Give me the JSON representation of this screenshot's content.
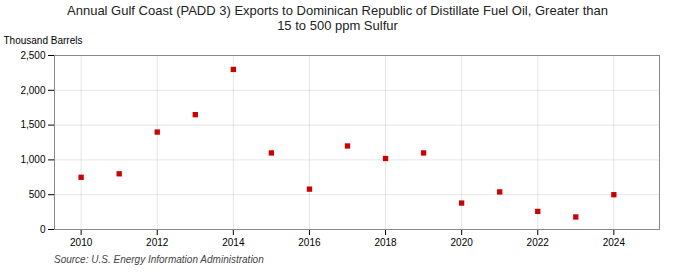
{
  "chart_data": {
    "type": "scatter",
    "title": "Annual Gulf Coast (PADD 3) Exports to Dominican Republic of Distillate Fuel Oil, Greater than\n15 to 500 ppm Sulfur",
    "ylabel": "Thousand Barrels",
    "source": "Source: U.S. Energy Information Administration",
    "x": [
      2010,
      2011,
      2012,
      2013,
      2014,
      2015,
      2016,
      2017,
      2018,
      2019,
      2020,
      2021,
      2022,
      2023,
      2024
    ],
    "values": [
      750,
      800,
      1400,
      1650,
      2300,
      1100,
      580,
      1200,
      1020,
      1100,
      380,
      540,
      260,
      180,
      500
    ],
    "color": "#cc0000",
    "marker": "square",
    "xlim": [
      2009.3,
      2025.2
    ],
    "xticks": [
      2010,
      2012,
      2014,
      2016,
      2018,
      2020,
      2022,
      2024
    ],
    "ylim": [
      0,
      2500
    ],
    "yticks": [
      0,
      500,
      {
        "value": 1000,
        "label": "1,000"
      },
      {
        "value": 1500,
        "label": "1,500"
      },
      {
        "value": 2000,
        "label": "2,000"
      },
      {
        "value": 2500,
        "label": "2,500"
      }
    ],
    "grid": true
  }
}
